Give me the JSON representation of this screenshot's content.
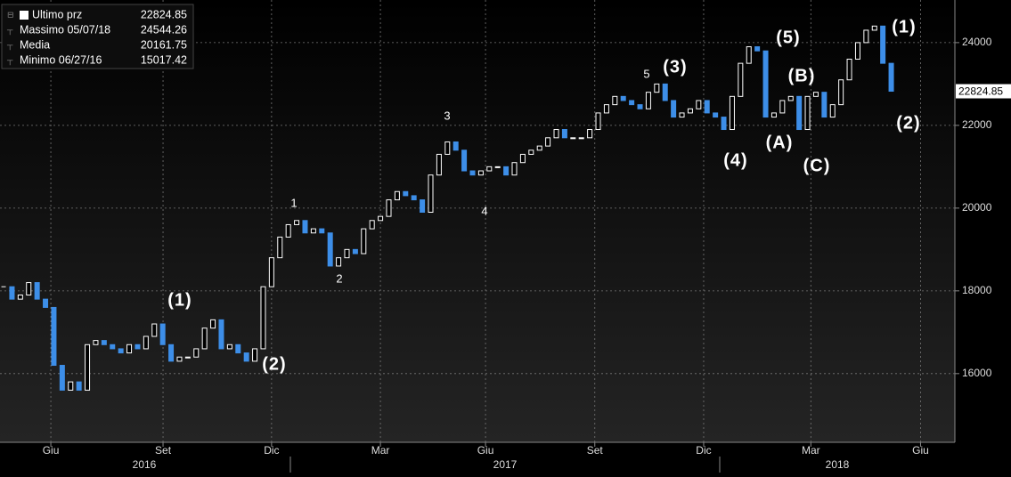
{
  "chart_data": {
    "type": "candlestick",
    "values": [
      18100,
      17800,
      17900,
      18200,
      17800,
      17600,
      16200,
      15600,
      15800,
      15600,
      16700,
      16800,
      16700,
      16600,
      16500,
      16700,
      16600,
      16900,
      17200,
      16700,
      16300,
      16400,
      16400,
      16600,
      17100,
      17300,
      16600,
      16700,
      16500,
      16300,
      16600,
      18100,
      18800,
      19300,
      19600,
      19700,
      19400,
      19500,
      19400,
      18600,
      18800,
      19000,
      18900,
      19500,
      19700,
      19800,
      20200,
      20400,
      20300,
      20200,
      19900,
      20800,
      21300,
      21600,
      21400,
      20900,
      20800,
      20900,
      21000,
      21000,
      20800,
      21100,
      21300,
      21400,
      21500,
      21700,
      21900,
      21700,
      21700,
      21700,
      21900,
      22300,
      22500,
      22700,
      22600,
      22500,
      22400,
      22800,
      23000,
      22600,
      22200,
      22300,
      22400,
      22600,
      22300,
      22200,
      21900,
      22700,
      23500,
      23900,
      23800,
      22200,
      22300,
      22600,
      22700,
      21900,
      22700,
      22800,
      22200,
      22500,
      23100,
      23600,
      24000,
      24300,
      24400,
      23500,
      22824.85
    ],
    "up_color": "#ffffff",
    "down_color": "#3d8ee8",
    "xlim": [
      -0.43,
      113.6
    ],
    "ylim": [
      14340,
      25030
    ],
    "xticks": [
      {
        "value": 5.64,
        "label": "Giu"
      },
      {
        "value": 19.04,
        "label": "Set"
      },
      {
        "value": 32.0,
        "label": "Dic"
      },
      {
        "value": 45.0,
        "label": "Mar"
      },
      {
        "value": 57.55,
        "label": "Giu"
      },
      {
        "value": 70.6,
        "label": "Set"
      },
      {
        "value": 83.6,
        "label": "Dic"
      },
      {
        "value": 96.4,
        "label": "Mar"
      },
      {
        "value": 109.5,
        "label": "Giu"
      }
    ],
    "year_labels": [
      "2016",
      "2017",
      "2018"
    ],
    "yticks": [
      16000,
      18000,
      20000,
      22000,
      24000
    ],
    "grid": true,
    "legend": [
      {
        "label": "Ultimo prz",
        "value": 22824.85
      },
      {
        "label": "Massimo 05/07/18",
        "value": 24544.26
      },
      {
        "label": "Media",
        "value": 20161.75
      },
      {
        "label": "Minimo 06/27/16",
        "value": 15017.42
      }
    ],
    "annotations": [
      "(1)",
      "(2)",
      "1",
      "2",
      "3",
      "4",
      "5",
      "(3)",
      "(4)",
      "(5)",
      "(A)",
      "(B)",
      "(C)",
      "(1)",
      "(2)"
    ]
  }
}
